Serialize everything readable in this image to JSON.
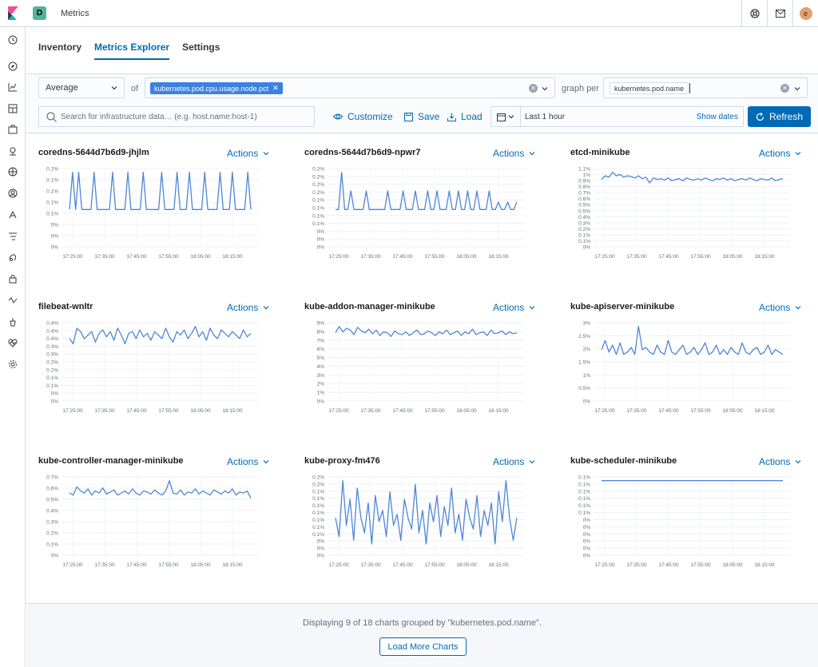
{
  "header": {
    "space_initial": "D",
    "app_title": "Metrics",
    "avatar_initial": "e",
    "icons": [
      "help-icon",
      "mail-icon"
    ]
  },
  "sidenav": {
    "icons": [
      "clock-icon",
      "compass-icon",
      "chart-icon",
      "dashboard-icon",
      "canvas-icon",
      "maps-icon",
      "ml-icon",
      "infrastructure-icon",
      "logs-icon",
      "apm-icon",
      "uptime-icon",
      "siem-icon",
      "devtools-icon",
      "monitoring-icon",
      "management-icon",
      "settings-icon"
    ]
  },
  "tabs": [
    {
      "label": "Inventory",
      "active": false
    },
    {
      "label": "Metrics Explorer",
      "active": true
    },
    {
      "label": "Settings",
      "active": false
    }
  ],
  "toolbar": {
    "aggregation": "Average",
    "of_label": "of",
    "metric": "kubernetes.pod.cpu.usage.node.pct",
    "graph_per_label": "graph per",
    "group_by": "kubernetes.pod.name",
    "search_placeholder": "Search for infrastructure data… (e.g. host.name:host-1)",
    "customize_label": "Customize",
    "save_label": "Save",
    "load_label": "Load",
    "date_range": "Last 1 hour",
    "show_dates_label": "Show dates",
    "refresh_label": "Refresh"
  },
  "charts": [
    {
      "title": "coredns-5644d7b6d9-jhjlm",
      "actions": "Actions"
    },
    {
      "title": "coredns-5644d7b6d9-npwr7",
      "actions": "Actions"
    },
    {
      "title": "etcd-minikube",
      "actions": "Actions"
    },
    {
      "title": "filebeat-wnltr",
      "actions": "Actions"
    },
    {
      "title": "kube-addon-manager-minikube",
      "actions": "Actions"
    },
    {
      "title": "kube-apiserver-minikube",
      "actions": "Actions"
    },
    {
      "title": "kube-controller-manager-minikube",
      "actions": "Actions"
    },
    {
      "title": "kube-proxy-fm476",
      "actions": "Actions"
    },
    {
      "title": "kube-scheduler-minikube",
      "actions": "Actions"
    }
  ],
  "chart_data": [
    {
      "type": "line",
      "title": "coredns-5644d7b6d9-jhjlm",
      "x_ticks": [
        "17:25:00",
        "17:35:00",
        "17:45:00",
        "17:55:00",
        "18:05:00",
        "18:15:00"
      ],
      "y_ticks": [
        "0%",
        "0%",
        "0%",
        "0.1%",
        "0.1%",
        "0.1%",
        "0.1%",
        "0.2%"
      ],
      "series": [
        {
          "pattern": "spiky",
          "base": 0.1,
          "values": [
            0.1,
            0.2,
            0.1,
            0.2,
            0.1,
            0.1,
            0.1,
            0.1,
            0.2,
            0.1,
            0.1,
            0.1,
            0.1,
            0.1,
            0.2,
            0.1,
            0.1,
            0.1,
            0.1,
            0.2,
            0.1,
            0.1,
            0.1,
            0.1,
            0.2,
            0.1,
            0.1,
            0.1,
            0.1,
            0.1,
            0.2,
            0.1,
            0.1,
            0.1,
            0.1,
            0.2,
            0.1,
            0.1,
            0.1,
            0.2,
            0.1,
            0.1,
            0.1,
            0.1,
            0.2,
            0.1,
            0.1,
            0.1,
            0.1,
            0.2,
            0.1,
            0.1,
            0.1,
            0.2,
            0.1,
            0.1,
            0.1,
            0.1,
            0.2,
            0.1
          ]
        }
      ]
    },
    {
      "type": "line",
      "title": "coredns-5644d7b6d9-npwr7",
      "x_ticks": [
        "17:25:00",
        "17:35:00",
        "17:45:00",
        "17:55:00",
        "18:05:00",
        "18:15:00"
      ],
      "y_ticks": [
        "0%",
        "0%",
        "0%",
        "0.1%",
        "0.1%",
        "0.1%",
        "0.1%",
        "0.2%",
        "0.2%",
        "0.2%",
        "0.2%"
      ],
      "series": [
        {
          "values": [
            0.1,
            0.1,
            0.2,
            0.1,
            0.1,
            0.15,
            0.1,
            0.1,
            0.1,
            0.1,
            0.15,
            0.1,
            0.1,
            0.1,
            0.1,
            0.1,
            0.1,
            0.15,
            0.1,
            0.1,
            0.1,
            0.1,
            0.15,
            0.1,
            0.1,
            0.1,
            0.15,
            0.1,
            0.1,
            0.1,
            0.15,
            0.1,
            0.1,
            0.15,
            0.1,
            0.1,
            0.1,
            0.15,
            0.1,
            0.1,
            0.15,
            0.1,
            0.1,
            0.15,
            0.1,
            0.1,
            0.15,
            0.1,
            0.1,
            0.1,
            0.15,
            0.1,
            0.1,
            0.12,
            0.1,
            0.1,
            0.12,
            0.1,
            0.1,
            0.12
          ]
        }
      ]
    },
    {
      "type": "line",
      "title": "etcd-minikube",
      "x_ticks": [
        "17:25:00",
        "17:35:00",
        "17:45:00",
        "17:55:00",
        "18:05:00",
        "18:15:00"
      ],
      "y_ticks": [
        "0%",
        "0.1%",
        "0.1%",
        "0.2%",
        "0.3%",
        "0.4%",
        "0.5%",
        "0.5%",
        "0.6%",
        "0.7%",
        "0.8%",
        "0.9%",
        "1%",
        "1.1%"
      ],
      "series": [
        {
          "values": [
            0.95,
            1.0,
            0.98,
            1.05,
            1.0,
            1.02,
            0.98,
            1.0,
            0.99,
            0.97,
            1.0,
            0.96,
            0.98,
            0.9,
            0.97,
            0.95,
            0.96,
            0.94,
            0.97,
            0.93,
            0.95,
            0.96,
            0.93,
            0.97,
            0.95,
            0.94,
            0.96,
            0.94,
            0.97,
            0.95,
            0.93,
            0.96,
            0.95,
            0.97,
            0.94,
            0.96,
            0.93,
            0.95,
            0.96,
            0.94,
            0.97,
            0.95,
            0.93,
            0.96,
            0.95,
            0.94,
            0.97,
            0.93,
            0.95,
            0.96
          ]
        }
      ]
    },
    {
      "type": "line",
      "title": "filebeat-wnltr",
      "x_ticks": [
        "17:25:00",
        "17:35:00",
        "17:45:00",
        "17:55:00",
        "18:05:00",
        "18:15:00"
      ],
      "y_ticks": [
        "0%",
        "0%",
        "0.1%",
        "0.1%",
        "0.2%",
        "0.2%",
        "0.3%",
        "0.3%",
        "0.4%",
        "0.4%",
        "0.4%"
      ],
      "series": [
        {
          "values": [
            0.36,
            0.33,
            0.42,
            0.4,
            0.36,
            0.38,
            0.4,
            0.34,
            0.39,
            0.41,
            0.37,
            0.4,
            0.35,
            0.42,
            0.38,
            0.33,
            0.39,
            0.4,
            0.36,
            0.41,
            0.37,
            0.39,
            0.35,
            0.4,
            0.38,
            0.36,
            0.42,
            0.37,
            0.34,
            0.4,
            0.38,
            0.41,
            0.36,
            0.39,
            0.43,
            0.37,
            0.4,
            0.35,
            0.42,
            0.38,
            0.36,
            0.41,
            0.39,
            0.37,
            0.4,
            0.38,
            0.36,
            0.41,
            0.37,
            0.39
          ]
        }
      ]
    },
    {
      "type": "line",
      "title": "kube-addon-manager-minikube",
      "x_ticks": [
        "17:25:00",
        "17:35:00",
        "17:45:00",
        "17:55:00",
        "18:05:00",
        "18:15:00"
      ],
      "y_ticks": [
        "0%",
        "1%",
        "2%",
        "3%",
        "4%",
        "5%",
        "6%",
        "7%",
        "8%",
        "9%"
      ],
      "series": [
        {
          "values": [
            7.5,
            8.2,
            7.6,
            8.0,
            7.8,
            7.3,
            8.1,
            7.7,
            7.5,
            7.9,
            7.4,
            7.8,
            7.2,
            7.6,
            7.5,
            7.1,
            7.7,
            7.4,
            7.3,
            7.6,
            7.2,
            7.5,
            7.8,
            7.3,
            7.4,
            7.7,
            7.5,
            7.2,
            7.6,
            7.4,
            7.8,
            7.3,
            7.5,
            7.7,
            7.2,
            7.6,
            7.4,
            7.9,
            7.3,
            7.5,
            7.6,
            7.2,
            7.8,
            7.4,
            7.5,
            7.7,
            7.3,
            7.6,
            7.4,
            7.5
          ]
        }
      ]
    },
    {
      "type": "line",
      "title": "kube-apiserver-minikube",
      "x_ticks": [
        "17:25:00",
        "17:35:00",
        "17:45:00",
        "17:55:00",
        "18:05:00",
        "18:15:00"
      ],
      "y_ticks": [
        "0%",
        "0.5%",
        "1%",
        "1.5%",
        "2%",
        "2.5%",
        "3%"
      ],
      "series": [
        {
          "values": [
            2.2,
            2.6,
            2.1,
            2.4,
            2.0,
            2.5,
            2.0,
            2.1,
            2.3,
            2.0,
            3.2,
            2.2,
            2.3,
            2.1,
            2.0,
            2.4,
            2.1,
            2.0,
            2.6,
            2.1,
            2.0,
            2.2,
            2.4,
            2.0,
            2.1,
            2.3,
            2.0,
            2.2,
            2.5,
            2.0,
            2.1,
            2.4,
            2.0,
            2.2,
            2.0,
            2.3,
            2.1,
            2.0,
            2.5,
            2.1,
            2.0,
            2.2,
            2.3,
            2.0,
            2.1,
            2.4,
            2.0,
            2.2,
            2.1,
            2.0
          ]
        }
      ]
    },
    {
      "type": "line",
      "title": "kube-controller-manager-minikube",
      "x_ticks": [
        "17:25:00",
        "17:35:00",
        "17:45:00",
        "17:55:00",
        "18:05:00",
        "18:15:00"
      ],
      "y_ticks": [
        "0%",
        "0.1%",
        "0.2%",
        "0.3%",
        "0.4%",
        "0.5%",
        "0.6%",
        "0.7%"
      ],
      "series": [
        {
          "values": [
            0.6,
            0.58,
            0.66,
            0.62,
            0.6,
            0.64,
            0.58,
            0.62,
            0.6,
            0.65,
            0.59,
            0.61,
            0.63,
            0.58,
            0.6,
            0.62,
            0.59,
            0.64,
            0.6,
            0.58,
            0.62,
            0.61,
            0.59,
            0.63,
            0.6,
            0.58,
            0.62,
            0.72,
            0.6,
            0.59,
            0.63,
            0.58,
            0.61,
            0.6,
            0.64,
            0.59,
            0.62,
            0.6,
            0.58,
            0.63,
            0.61,
            0.59,
            0.62,
            0.6,
            0.64,
            0.58,
            0.61,
            0.6,
            0.62,
            0.55
          ]
        }
      ]
    },
    {
      "type": "line",
      "title": "kube-proxy-fm476",
      "x_ticks": [
        "17:25:00",
        "17:35:00",
        "17:45:00",
        "17:55:00",
        "18:05:00",
        "18:15:00"
      ],
      "y_ticks": [
        "0%",
        "0%",
        "0%",
        "0.1%",
        "0.1%",
        "0.1%",
        "0.1%",
        "0.1%",
        "0.1%",
        "0.1%",
        "0.2%",
        "0.2%"
      ],
      "series": [
        {
          "values": [
            0.1,
            0.05,
            0.2,
            0.08,
            0.15,
            0.04,
            0.18,
            0.1,
            0.06,
            0.14,
            0.03,
            0.16,
            0.09,
            0.12,
            0.05,
            0.17,
            0.08,
            0.11,
            0.04,
            0.15,
            0.1,
            0.07,
            0.19,
            0.06,
            0.12,
            0.03,
            0.14,
            0.09,
            0.16,
            0.05,
            0.13,
            0.08,
            0.18,
            0.06,
            0.11,
            0.04,
            0.15,
            0.1,
            0.07,
            0.16,
            0.05,
            0.12,
            0.08,
            0.14,
            0.03,
            0.17,
            0.09,
            0.2,
            0.1,
            0.04,
            0.1
          ]
        }
      ]
    },
    {
      "type": "line",
      "title": "kube-scheduler-minikube",
      "x_ticks": [
        "17:25:00",
        "17:35:00",
        "17:45:00",
        "17:55:00",
        "18:05:00",
        "18:15:00"
      ],
      "y_ticks": [
        "0%",
        "0%",
        "0%",
        "0%",
        "0%",
        "0%",
        "0.1%",
        "0.1%",
        "0.1%",
        "0.1%",
        "0.1%",
        "0.1%"
      ],
      "series": [
        {
          "values": [
            0.1,
            0.1,
            0.1,
            0.1,
            0.1,
            0.1,
            0.1,
            0.1,
            0.1,
            0.1
          ]
        }
      ]
    }
  ],
  "footer": {
    "summary": "Displaying 9 of 18 charts grouped by \"kubernetes.pod.name\".",
    "load_more_label": "Load More Charts"
  },
  "colors": {
    "accent": "#006bb4",
    "line": "#4f86d6",
    "pill": "#3b82e0"
  }
}
